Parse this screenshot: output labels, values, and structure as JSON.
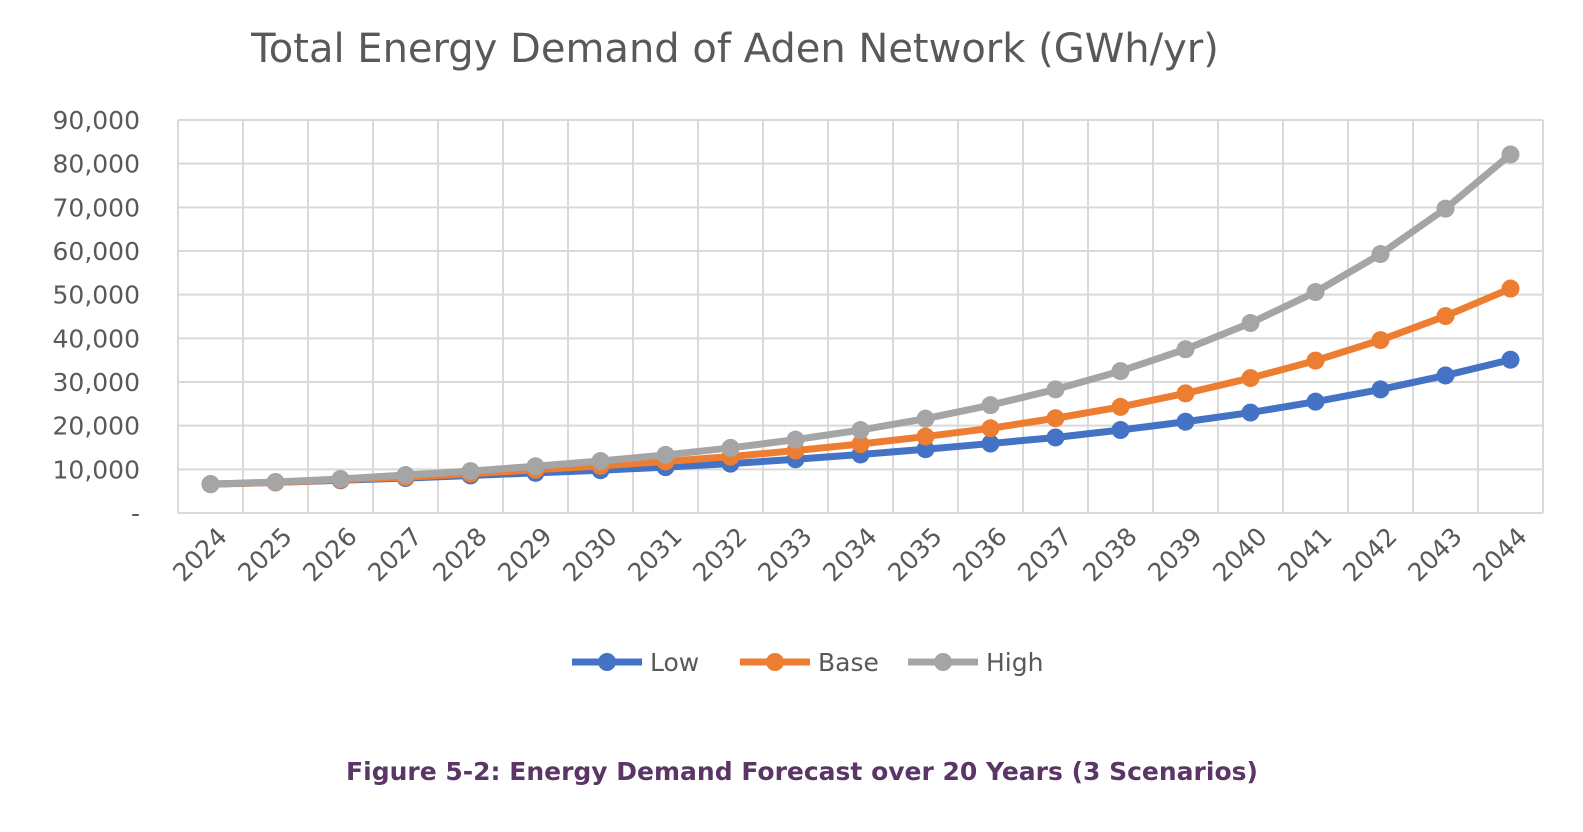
{
  "colors": {
    "low": "#4472c4",
    "base": "#ed7d31",
    "high": "#a5a5a5",
    "grid": "#d9d9d9",
    "text": "#595959",
    "caption": "#5a3566"
  },
  "caption": "Figure 5-2: Energy Demand Forecast over 20 Years (3 Scenarios)",
  "chart_data": {
    "type": "line",
    "title": "Total Energy Demand of Aden Network (GWh/yr)",
    "xlabel": "",
    "ylabel": "",
    "ylim": [
      0,
      90000
    ],
    "yticks": [
      "-",
      "10,000",
      "20,000",
      "30,000",
      "40,000",
      "50,000",
      "60,000",
      "70,000",
      "80,000",
      "90,000"
    ],
    "grid": true,
    "legend_position": "bottom",
    "categories": [
      "2024",
      "2025",
      "2026",
      "2027",
      "2028",
      "2029",
      "2030",
      "2031",
      "2032",
      "2033",
      "2034",
      "2035",
      "2036",
      "2037",
      "2038",
      "2039",
      "2040",
      "2041",
      "2042",
      "2043",
      "2044"
    ],
    "series": [
      {
        "name": "Low",
        "color": "#4472c4",
        "values": [
          6600,
          7000,
          7500,
          8000,
          8600,
          9200,
          9800,
          10500,
          11300,
          12300,
          13400,
          14600,
          15900,
          17300,
          19000,
          20900,
          23000,
          25500,
          28300,
          31500,
          35100
        ]
      },
      {
        "name": "Base",
        "color": "#ed7d31",
        "values": [
          6600,
          7000,
          7600,
          8200,
          9000,
          9900,
          10800,
          11800,
          12900,
          14300,
          15800,
          17500,
          19400,
          21700,
          24300,
          27400,
          30900,
          34900,
          39600,
          45100,
          51400
        ]
      },
      {
        "name": "High",
        "color": "#a5a5a5",
        "values": [
          6600,
          7100,
          7800,
          8700,
          9600,
          10700,
          11900,
          13300,
          14900,
          16800,
          19000,
          21600,
          24700,
          28300,
          32500,
          37500,
          43500,
          50600,
          59300,
          69700,
          82100
        ]
      }
    ]
  }
}
